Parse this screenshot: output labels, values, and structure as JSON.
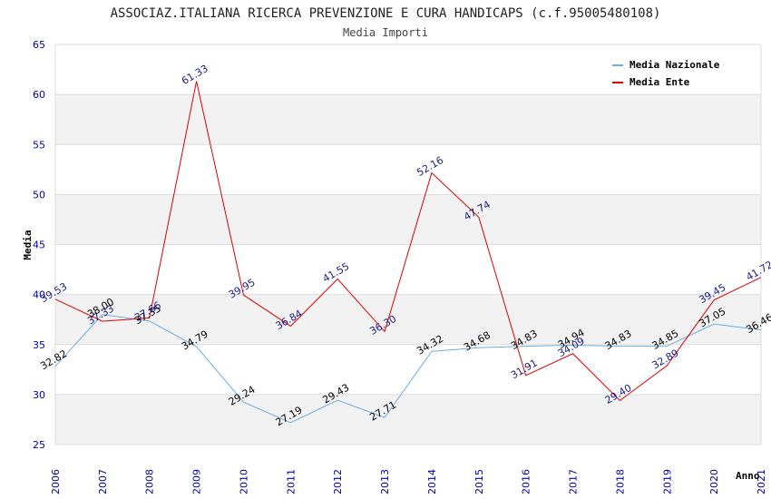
{
  "chart_data": {
    "type": "line",
    "title": "ASSOCIAZ.ITALIANA RICERCA PREVENZIONE E CURA HANDICAPS (c.f.95005480108)",
    "subtitle": "Media Importi",
    "xlabel": "Anno",
    "ylabel": "Media",
    "ylim": [
      25,
      65
    ],
    "yticks": [
      25,
      30,
      35,
      40,
      45,
      50,
      55,
      60,
      65
    ],
    "categories": [
      "2006",
      "2007",
      "2008",
      "2009",
      "2010",
      "2011",
      "2012",
      "2013",
      "2014",
      "2015",
      "2016",
      "2017",
      "2018",
      "2019",
      "2020",
      "2021"
    ],
    "legend_position": "top-right",
    "series": [
      {
        "name": "Media Nazionale",
        "color": "#6aaee6",
        "label_color": "#000000",
        "values": [
          32.82,
          38.0,
          37.35,
          34.79,
          29.24,
          27.19,
          29.43,
          27.71,
          34.32,
          34.68,
          34.83,
          34.94,
          34.83,
          34.85,
          37.05,
          36.46
        ],
        "labels": [
          "32.82",
          "38.00",
          "37.35",
          "34.79",
          "29.24",
          "27.19",
          "29.43",
          "27.71",
          "34.32",
          "34.68",
          "34.83",
          "34.94",
          "34.83",
          "34.85",
          "37.05",
          "36.46"
        ]
      },
      {
        "name": "Media Ente",
        "color": "#dd0000",
        "label_color": "#1a1a8a",
        "values": [
          39.53,
          37.33,
          37.66,
          61.33,
          39.95,
          36.84,
          41.55,
          36.3,
          52.16,
          47.74,
          31.91,
          34.09,
          29.4,
          32.89,
          39.45,
          41.72
        ],
        "labels": [
          "39.53",
          "37.33",
          "37.66",
          "61.33",
          "39.95",
          "36.84",
          "41.55",
          "36.30",
          "52.16",
          "47.74",
          "31.91",
          "34.09",
          "29.40",
          "32.89",
          "39.45",
          "41.72"
        ]
      }
    ]
  }
}
